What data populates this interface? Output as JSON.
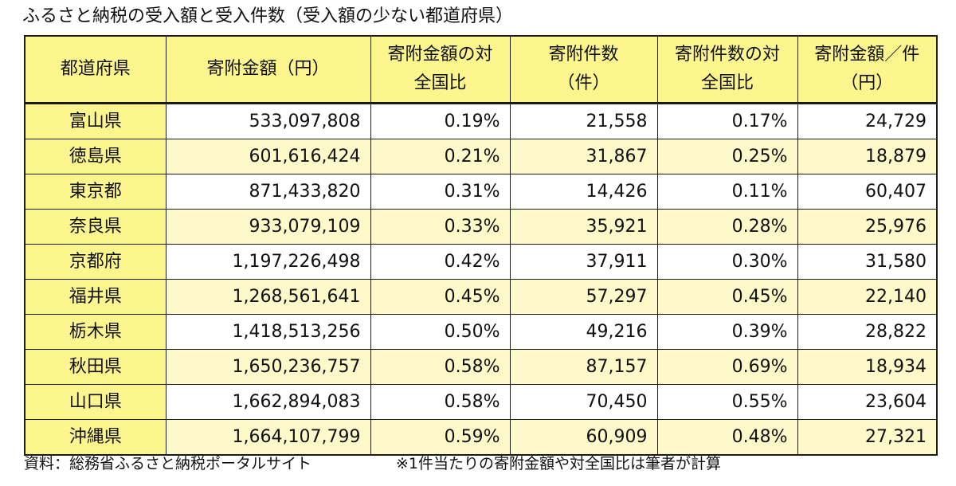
{
  "title": "ふるさと納税の受入額と受入件数（受入額の少ない都道府県）",
  "footer": {
    "source": "資料：総務省ふるさと納税ポータルサイト",
    "note": "※1件当たりの寄附金額や対全国比は筆者が計算"
  },
  "colors": {
    "header_bg": "#fdf58e",
    "row_alt_bg": "#fdf9c9",
    "border": "#1a1a1a"
  },
  "chart_data": {
    "type": "table",
    "title": "ふるさと納税の受入額と受入件数（受入額の少ない都道府県）",
    "columns": [
      {
        "line1": "都道府県",
        "line2": ""
      },
      {
        "line1": "寄附金額（円）",
        "line2": ""
      },
      {
        "line1": "寄附金額の対",
        "line2": "全国比"
      },
      {
        "line1": "寄附件数",
        "line2": "（件）"
      },
      {
        "line1": "寄附件数の対",
        "line2": "全国比"
      },
      {
        "line1": "寄附金額／件",
        "line2": "（円）"
      }
    ],
    "rows": [
      [
        "富山県",
        "533,097,808",
        "0.19%",
        "21,558",
        "0.17%",
        "24,729"
      ],
      [
        "徳島県",
        "601,616,424",
        "0.21%",
        "31,867",
        "0.25%",
        "18,879"
      ],
      [
        "東京都",
        "871,433,820",
        "0.31%",
        "14,426",
        "0.11%",
        "60,407"
      ],
      [
        "奈良県",
        "933,079,109",
        "0.33%",
        "35,921",
        "0.28%",
        "25,976"
      ],
      [
        "京都府",
        "1,197,226,498",
        "0.42%",
        "37,911",
        "0.30%",
        "31,580"
      ],
      [
        "福井県",
        "1,268,561,641",
        "0.45%",
        "57,297",
        "0.45%",
        "22,140"
      ],
      [
        "栃木県",
        "1,418,513,256",
        "0.50%",
        "49,216",
        "0.39%",
        "28,822"
      ],
      [
        "秋田県",
        "1,650,236,757",
        "0.58%",
        "87,157",
        "0.69%",
        "18,934"
      ],
      [
        "山口県",
        "1,662,894,083",
        "0.58%",
        "70,450",
        "0.55%",
        "23,604"
      ],
      [
        "沖縄県",
        "1,664,107,799",
        "0.59%",
        "60,909",
        "0.48%",
        "27,321"
      ]
    ]
  }
}
